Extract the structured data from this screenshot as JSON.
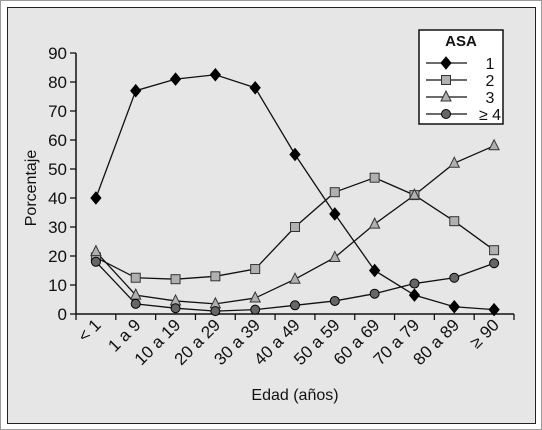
{
  "chart_data": {
    "type": "line",
    "title": "",
    "xlabel": "Edad (años)",
    "ylabel": "Porcentaje",
    "ylim": [
      0,
      90
    ],
    "yticks": [
      0,
      10,
      20,
      30,
      40,
      50,
      60,
      70,
      80,
      90
    ],
    "categories": [
      "< 1",
      "1 a 9",
      "10 a 19",
      "20 a 29",
      "30 a 39",
      "40 a 49",
      "50 a 59",
      "60 a 69",
      "70 a 79",
      "80 a 89",
      "≥ 90"
    ],
    "grid": false,
    "legend": {
      "title": "ASA",
      "placement": "top-right"
    },
    "series": [
      {
        "name": "1",
        "marker": "diamond",
        "color": "#000000",
        "values": [
          40,
          77,
          81,
          82.5,
          78,
          55,
          34.5,
          15,
          6.5,
          2.5,
          1.5
        ]
      },
      {
        "name": "2",
        "marker": "square",
        "color": "#b0b0b0",
        "values": [
          19.5,
          12.5,
          12,
          13,
          15.5,
          30,
          42,
          47,
          41,
          32,
          22
        ]
      },
      {
        "name": "3",
        "marker": "triangle",
        "color": "#b0b0b0",
        "values": [
          21.5,
          6.5,
          4.5,
          3.5,
          5.5,
          12,
          19.5,
          31,
          41,
          52,
          58
        ]
      },
      {
        "name": "≥ 4",
        "marker": "circle",
        "color": "#666666",
        "values": [
          18,
          3.5,
          2,
          1,
          1.5,
          3,
          4.5,
          7,
          10.5,
          12.5,
          17.5
        ]
      }
    ]
  }
}
